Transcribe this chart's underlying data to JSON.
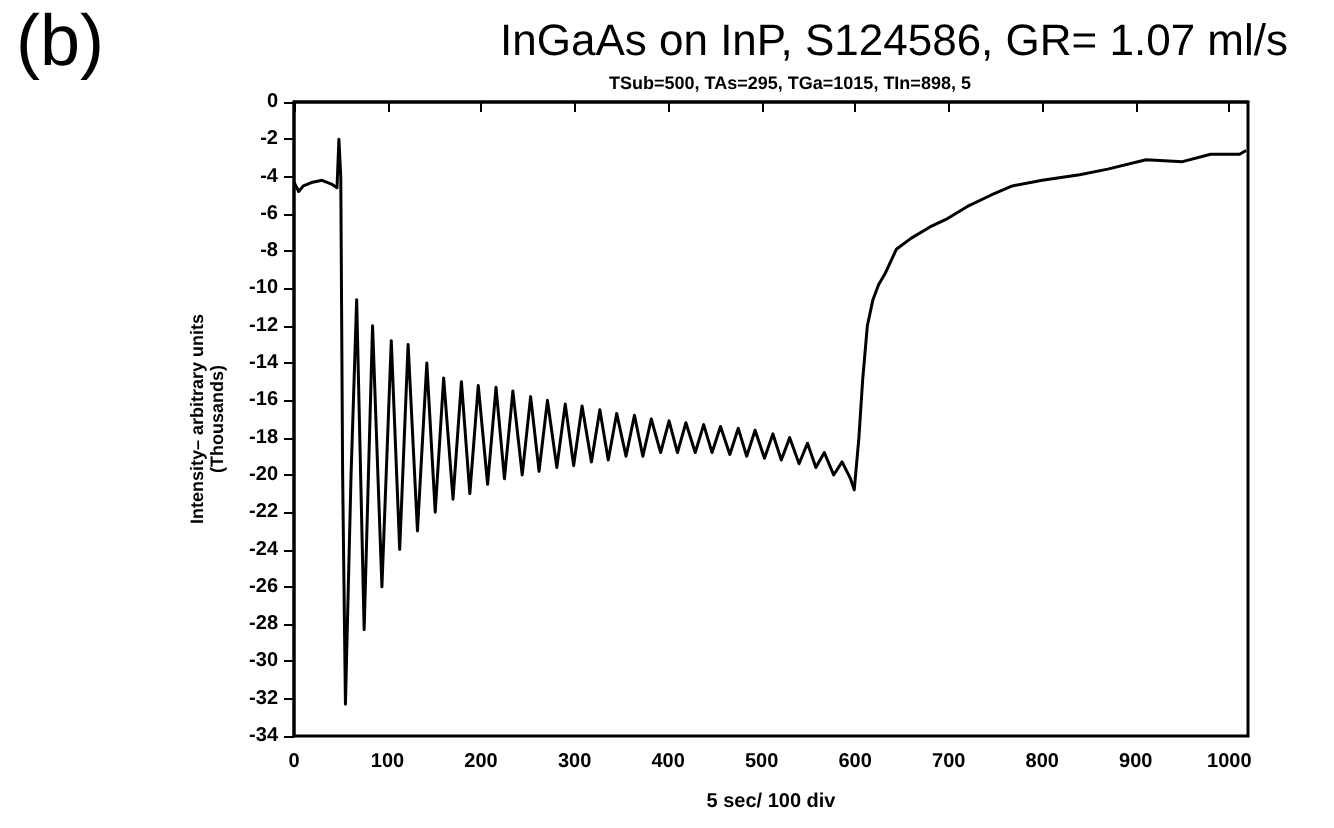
{
  "chart_data": {
    "type": "line",
    "title": "InGaAs on InP, S124586, GR= 1.07 ml/s",
    "subtitle": "TSub=500, TAs=295, TGa=1015, TIn=898, 5",
    "xlabel": "5 sec/ 100 div",
    "ylabel": "Intensity– arbitrary units\n(Thousands)",
    "annotations": [
      "(b)"
    ],
    "xlim": [
      0,
      1020
    ],
    "xticks": [
      0,
      100,
      200,
      300,
      400,
      500,
      600,
      700,
      800,
      900,
      1000
    ],
    "ylim": [
      -34,
      0
    ],
    "yticks": [
      -34,
      -32,
      -30,
      -28,
      -26,
      -24,
      -22,
      -20,
      -18,
      -16,
      -14,
      -12,
      -10,
      -8,
      -6,
      -4,
      -2,
      0
    ],
    "grid": false,
    "marker": "none",
    "line_style": "solid",
    "series": [
      {
        "color": "#000000",
        "x": [
          0,
          5,
          10,
          20,
          30,
          40,
          46,
          48,
          50,
          52,
          55,
          61,
          67,
          75,
          84,
          94,
          104,
          113,
          122,
          132,
          142,
          151,
          160,
          170,
          179,
          188,
          197,
          207,
          216,
          225,
          234,
          244,
          253,
          262,
          271,
          281,
          290,
          299,
          308,
          318,
          327,
          336,
          345,
          355,
          364,
          373,
          382,
          392,
          401,
          410,
          419,
          429,
          438,
          447,
          456,
          466,
          475,
          484,
          493,
          503,
          512,
          521,
          530,
          540,
          549,
          558,
          567,
          577,
          586,
          595,
          599,
          604,
          608,
          613,
          619,
          625,
          632,
          644,
          660,
          680,
          697,
          720,
          745,
          768,
          800,
          840,
          870,
          911,
          950,
          980,
          1011,
          1018
        ],
        "values": [
          -4.3,
          -4.8,
          -4.5,
          -4.3,
          -4.2,
          -4.4,
          -4.6,
          -2,
          -4,
          -20,
          -32.3,
          -20,
          -10.6,
          -28.3,
          -12,
          -26,
          -12.8,
          -24,
          -13,
          -23,
          -14,
          -22,
          -14.8,
          -21.3,
          -15,
          -21,
          -15.2,
          -20.5,
          -15.3,
          -20.2,
          -15.5,
          -20,
          -15.8,
          -19.8,
          -16,
          -19.6,
          -16.2,
          -19.5,
          -16.3,
          -19.3,
          -16.5,
          -19.2,
          -16.7,
          -19,
          -16.8,
          -19,
          -17,
          -18.8,
          -17.1,
          -18.8,
          -17.2,
          -18.8,
          -17.3,
          -18.8,
          -17.4,
          -18.9,
          -17.5,
          -19,
          -17.6,
          -19.1,
          -17.8,
          -19.2,
          -18,
          -19.4,
          -18.3,
          -19.6,
          -18.8,
          -20,
          -19.3,
          -20.2,
          -20.8,
          -18,
          -14.9,
          -12,
          -10.6,
          -9.8,
          -9.2,
          -7.9,
          -7.3,
          -6.7,
          -6.3,
          -5.6,
          -5,
          -4.5,
          -4.2,
          -3.9,
          -3.6,
          -3.1,
          -3.2,
          -2.8,
          -2.8,
          -2.6
        ]
      }
    ]
  }
}
